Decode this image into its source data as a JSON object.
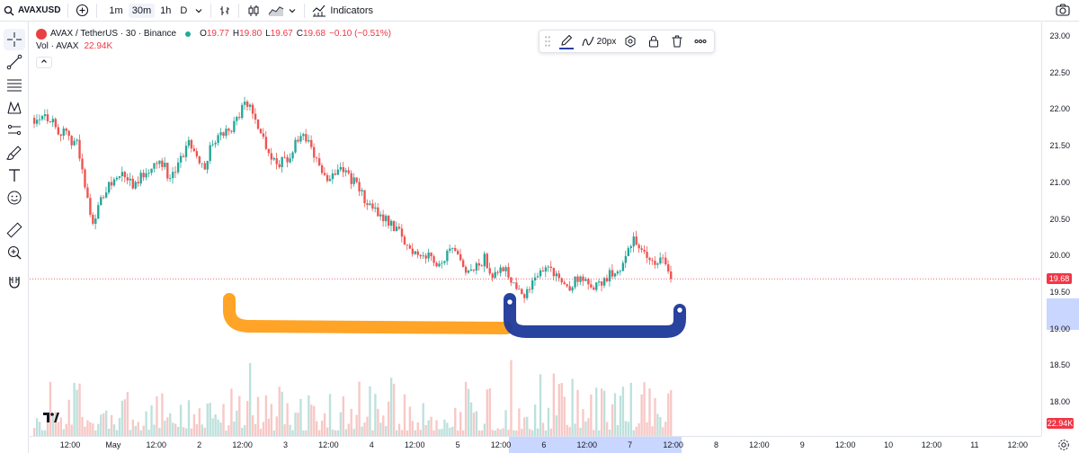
{
  "toolbar": {
    "symbol": "AVAXUSD",
    "intervals": [
      {
        "label": "1m",
        "active": false
      },
      {
        "label": "30m",
        "active": true
      },
      {
        "label": "1h",
        "active": false
      },
      {
        "label": "D",
        "active": false
      }
    ],
    "indicators_label": "Indicators",
    "icons": [
      "search-icon",
      "add-symbol-icon",
      "chevron-down-icon",
      "bar-style-icon",
      "candles-icon",
      "area-icon",
      "indicators-icon",
      "camera-icon"
    ]
  },
  "legend": {
    "title": "AVAX / TetherUS · 30 · Binance",
    "o_label": "O",
    "o_value": "19.77",
    "h_label": "H",
    "h_value": "19.80",
    "l_label": "L",
    "l_value": "19.67",
    "c_label": "C",
    "c_value": "19.68",
    "change": "−0.10 (−0.51%)",
    "vol_label": "Vol · AVAX",
    "vol_value": "22.94K"
  },
  "left_tools": [
    "crosshair-icon",
    "trend-line-icon",
    "fib-icon",
    "pattern-icon",
    "prediction-icon",
    "brush-icon",
    "text-icon",
    "emoji-icon",
    "ruler-icon",
    "zoom-icon",
    "magnet-icon"
  ],
  "draw_toolbar": {
    "width_label": "20px",
    "line_color": "#2a3fa5",
    "icons": [
      "drag-handle-icon",
      "pencil-icon",
      "line-width-icon",
      "settings-icon",
      "lock-icon",
      "trash-icon",
      "more-icon"
    ]
  },
  "price_axis": {
    "ticks": [
      "23.00",
      "22.50",
      "22.00",
      "21.50",
      "21.00",
      "20.50",
      "20.00",
      "19.50",
      "19.00",
      "18.50",
      "18.00"
    ],
    "last_price": "19.68",
    "volume_label": "22.94K"
  },
  "time_axis": {
    "ticks": [
      "12:00",
      "May",
      "12:00",
      "2",
      "12:00",
      "3",
      "12:00",
      "4",
      "12:00",
      "5",
      "12:00",
      "6",
      "12:00",
      "7",
      "12:00",
      "8",
      "12:00",
      "9",
      "12:00",
      "10",
      "12:00",
      "11",
      "12:00"
    ]
  },
  "colors": {
    "up": "#26a69a",
    "down": "#ef5350",
    "last_price_line": "#f23645",
    "highlight_orange": "#ff9f1a",
    "highlight_blue": "#1e3a9a",
    "selection_band": "#c9d6ff"
  },
  "chart_data": {
    "type": "candlestick",
    "title": "AVAX / TetherUS · 30 · Binance",
    "y_range": [
      17.7,
      23.2
    ],
    "last_close": 19.68,
    "price_path": [
      21.88,
      21.95,
      21.85,
      21.7,
      21.6,
      21.55,
      20.9,
      20.45,
      20.8,
      21.0,
      21.1,
      21.05,
      20.95,
      21.15,
      21.25,
      21.3,
      21.05,
      21.2,
      21.55,
      21.45,
      21.2,
      21.55,
      21.65,
      21.7,
      21.9,
      22.1,
      21.9,
      21.6,
      21.35,
      21.25,
      21.35,
      21.55,
      21.6,
      21.4,
      21.05,
      21.1,
      21.25,
      21.1,
      20.95,
      20.75,
      20.6,
      20.55,
      20.45,
      20.3,
      20.1,
      20.05,
      20.0,
      19.95,
      19.9,
      20.05,
      19.95,
      19.7,
      19.82,
      19.95,
      19.75,
      19.9,
      19.7,
      19.6,
      19.45,
      19.7,
      19.85,
      19.8,
      19.65,
      19.55,
      19.7,
      19.6,
      19.55,
      19.65,
      19.75,
      19.85,
      20.15,
      20.2,
      19.95,
      19.9,
      19.95,
      19.75
    ]
  }
}
